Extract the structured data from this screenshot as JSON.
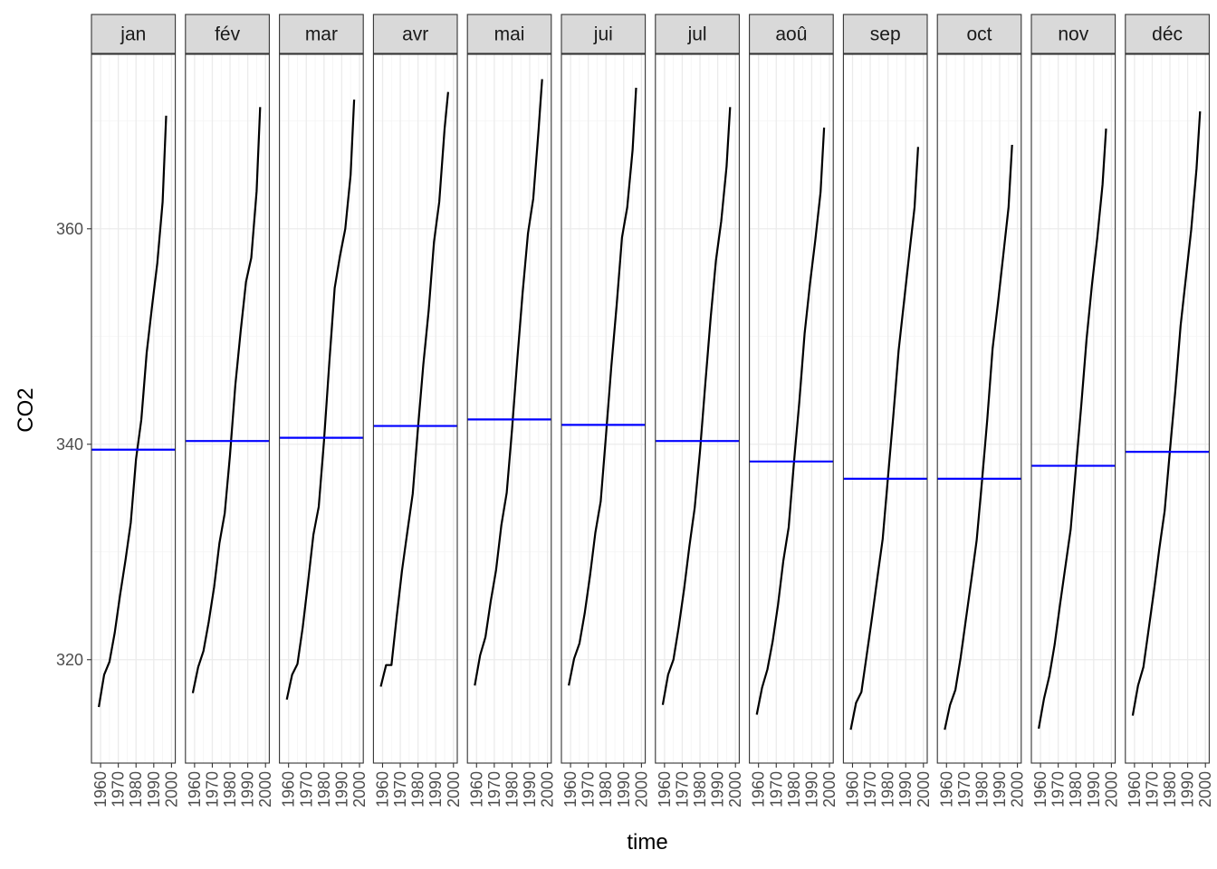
{
  "chart_data": {
    "type": "line",
    "facet": "small-multiples",
    "xlabel": "time",
    "ylabel": "CO2",
    "x_ticks": [
      1960,
      1970,
      1980,
      1990,
      2000
    ],
    "xlim": [
      1957,
      2000
    ],
    "y_ticks": [
      320,
      340,
      360
    ],
    "ylim": [
      310.4,
      376.2
    ],
    "grid": true,
    "x": [
      1959,
      1962,
      1965,
      1968,
      1971,
      1974,
      1977,
      1980,
      1983,
      1986,
      1989,
      1992,
      1995,
      1997
    ],
    "panels": [
      {
        "label": "jan",
        "values": [
          315.6,
          318.6,
          319.8,
          322.5,
          326.0,
          329.2,
          332.7,
          338.6,
          342.3,
          348.5,
          352.8,
          356.8,
          362.5,
          370.5
        ],
        "mean": 339.5
      },
      {
        "label": "fév",
        "values": [
          316.9,
          319.3,
          320.8,
          323.5,
          326.7,
          330.8,
          333.6,
          339.0,
          345.5,
          350.5,
          355.1,
          357.3,
          363.5,
          371.3
        ],
        "mean": 340.3
      },
      {
        "label": "mar",
        "values": [
          316.3,
          318.6,
          319.6,
          323.0,
          327.2,
          331.6,
          334.2,
          340.3,
          347.6,
          354.5,
          357.5,
          360.0,
          365.0,
          372.0
        ],
        "mean": 340.6
      },
      {
        "label": "avr",
        "values": [
          317.5,
          319.5,
          319.5,
          324.0,
          328.3,
          331.9,
          335.4,
          341.5,
          347.4,
          352.4,
          358.8,
          362.5,
          369.3,
          372.7
        ],
        "mean": 341.7
      },
      {
        "label": "mai",
        "values": [
          317.6,
          320.4,
          322.1,
          325.4,
          328.3,
          332.5,
          335.5,
          341.3,
          347.9,
          354.1,
          359.6,
          362.8,
          369.2,
          373.9
        ],
        "mean": 342.3
      },
      {
        "label": "jui",
        "values": [
          317.6,
          320.1,
          321.5,
          324.3,
          327.8,
          331.8,
          334.7,
          340.8,
          347.2,
          352.9,
          359.2,
          362.0,
          367.3,
          373.1
        ],
        "mean": 341.8
      },
      {
        "label": "jul",
        "values": [
          315.8,
          318.6,
          320.0,
          323.0,
          326.5,
          330.5,
          334.1,
          339.3,
          345.6,
          351.7,
          357.1,
          360.7,
          365.8,
          371.3
        ],
        "mean": 340.3
      },
      {
        "label": "aoû",
        "values": [
          314.9,
          317.4,
          319.1,
          321.7,
          325.1,
          329.2,
          332.3,
          338.3,
          343.9,
          350.3,
          354.9,
          358.9,
          363.4,
          369.4
        ],
        "mean": 338.4
      },
      {
        "label": "sep",
        "values": [
          313.5,
          316.0,
          317.0,
          320.4,
          323.9,
          327.6,
          331.2,
          336.9,
          342.6,
          348.7,
          353.2,
          357.6,
          362.0,
          367.6
        ],
        "mean": 336.8
      },
      {
        "label": "oct",
        "values": [
          313.5,
          315.8,
          317.2,
          320.2,
          323.8,
          327.4,
          331.1,
          336.5,
          342.3,
          348.9,
          353.1,
          357.5,
          362.0,
          367.8
        ],
        "mean": 336.8
      },
      {
        "label": "nov",
        "values": [
          313.6,
          316.4,
          318.5,
          321.4,
          325.1,
          328.6,
          332.1,
          337.8,
          343.6,
          349.8,
          354.8,
          359.1,
          364.1,
          369.3
        ],
        "mean": 338.0
      },
      {
        "label": "déc",
        "values": [
          314.8,
          317.6,
          319.3,
          322.8,
          326.4,
          330.3,
          333.8,
          339.4,
          344.9,
          351.0,
          355.5,
          359.9,
          365.6,
          370.9
        ],
        "mean": 339.3
      }
    ],
    "colors": {
      "line": "#000000",
      "mean_line": "#0000ff",
      "strip_fill": "#d9d9d9",
      "strip_border": "#333333",
      "grid_major": "#ebebeb",
      "grid_minor": "#f4f4f4",
      "panel_border": "#333333"
    }
  }
}
